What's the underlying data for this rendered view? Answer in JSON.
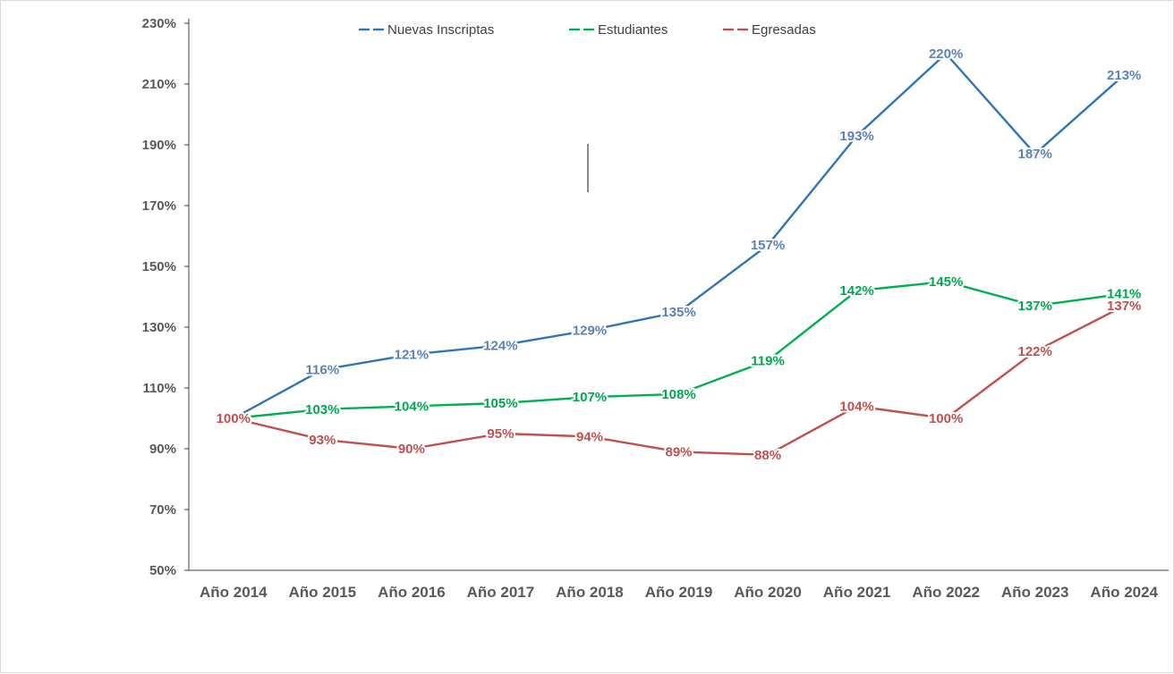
{
  "chart_data": {
    "type": "line",
    "title": "",
    "xlabel": "",
    "ylabel": "",
    "ylim": [
      50,
      230
    ],
    "y_ticks": [
      "230%",
      "210%",
      "190%",
      "170%",
      "150%",
      "130%",
      "110%",
      "90%",
      "70%",
      "50%"
    ],
    "categories": [
      "Año 2014",
      "Año 2015",
      "Año 2016",
      "Año 2017",
      "Año 2018",
      "Año 2019",
      "Año 2020",
      "Año 2021",
      "Año 2022",
      "Año 2023",
      "Año 2024"
    ],
    "legend_position": "top",
    "grid": false,
    "series": [
      {
        "name": "Nuevas Inscriptas",
        "color": "#2e75b6",
        "label_color": "#5b82b8",
        "values": [
          100,
          116,
          121,
          124,
          129,
          135,
          157,
          193,
          220,
          187,
          213
        ],
        "labels": [
          "100%",
          "116%",
          "121%",
          "124%",
          "129%",
          "135%",
          "157%",
          "193%",
          "220%",
          "187%",
          "213%"
        ]
      },
      {
        "name": "Estudiantes",
        "color": "#00b050",
        "label_color": "#00a650",
        "values": [
          100,
          103,
          104,
          105,
          107,
          108,
          119,
          142,
          145,
          137,
          141
        ],
        "labels": [
          "100%",
          "103%",
          "104%",
          "105%",
          "107%",
          "108%",
          "119%",
          "142%",
          "145%",
          "137%",
          "141%"
        ]
      },
      {
        "name": "Egresadas",
        "color": "#c0504d",
        "label_color": "#c0504d",
        "values": [
          100,
          93,
          90,
          95,
          94,
          89,
          88,
          104,
          100,
          122,
          137
        ],
        "labels": [
          "100%",
          "93%",
          "90%",
          "95%",
          "94%",
          "89%",
          "88%",
          "104%",
          "100%",
          "122%",
          "137%"
        ]
      }
    ]
  }
}
